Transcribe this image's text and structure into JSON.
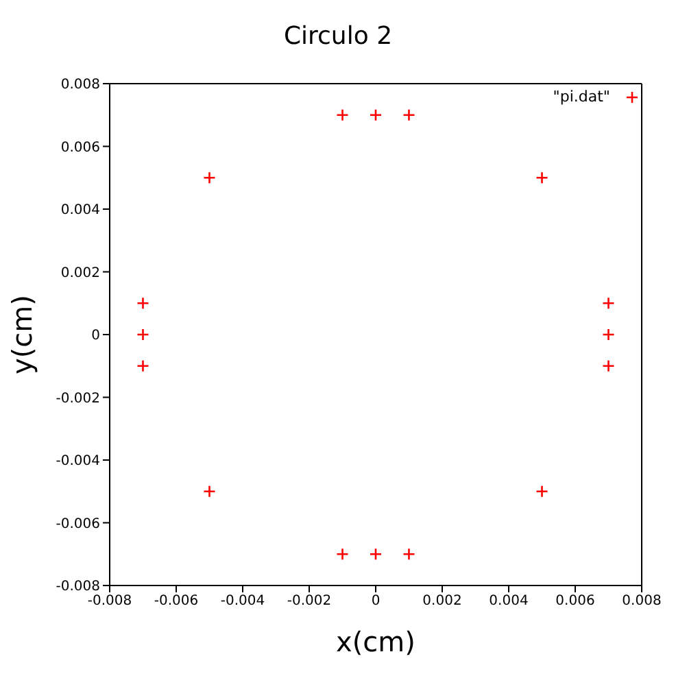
{
  "chart_data": {
    "type": "scatter",
    "title": "Circulo 2",
    "xlabel": "x(cm)",
    "ylabel": "y(cm)",
    "x": [
      -0.007,
      -0.007,
      -0.007,
      -0.005,
      -0.005,
      -0.001,
      0,
      0.001,
      -0.001,
      0,
      0.001,
      0.005,
      0.005,
      0.007,
      0.007,
      0.007
    ],
    "series": [
      {
        "name": "\"pi.dat\"",
        "color": "#ff0000",
        "values": [
          0.001,
          0,
          -0.001,
          0.005,
          -0.005,
          0.007,
          0.007,
          0.007,
          -0.007,
          -0.007,
          -0.007,
          0.005,
          -0.005,
          0.001,
          0,
          -0.001
        ]
      }
    ],
    "xlim": [
      -0.008,
      0.008
    ],
    "xticks": [
      -0.008,
      -0.006,
      -0.004,
      -0.002,
      0,
      0.002,
      0.004,
      0.006,
      0.008
    ],
    "ylim": [
      -0.008,
      0.008
    ],
    "yticks": [
      -0.008,
      -0.006,
      -0.004,
      -0.002,
      0,
      0.002,
      0.004,
      0.006,
      0.008
    ],
    "marker": "cross",
    "legend": "top right"
  }
}
